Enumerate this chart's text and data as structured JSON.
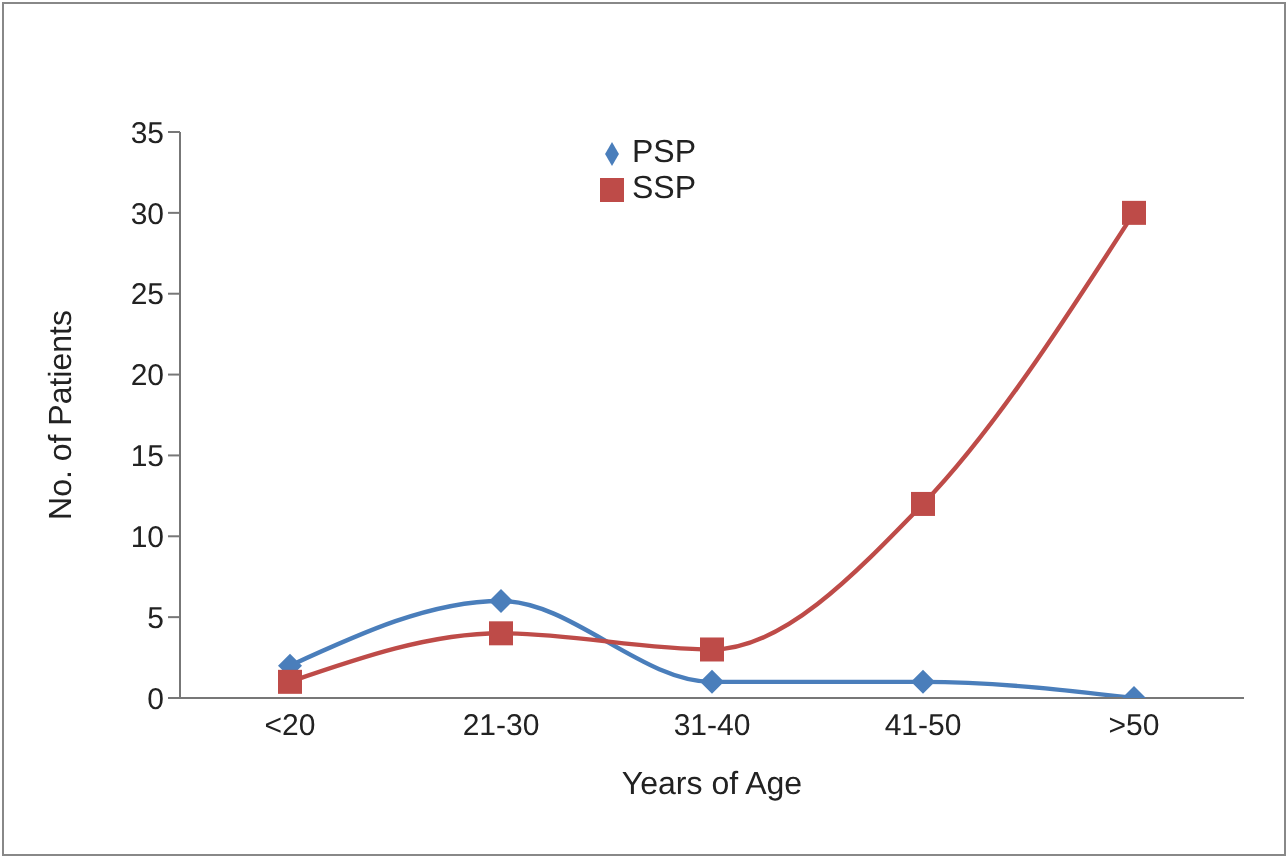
{
  "chart_data": {
    "type": "line",
    "xlabel": "Years of Age",
    "ylabel": "No. of Patients",
    "categories": [
      "<20",
      "21-30",
      "31-40",
      "41-50",
      ">50"
    ],
    "series": [
      {
        "name": "PSP",
        "color": "#4a7ebb",
        "values": [
          2,
          6,
          1,
          1,
          0
        ],
        "marker": "diamond"
      },
      {
        "name": "SSP",
        "color": "#be4b48",
        "values": [
          1,
          4,
          3,
          12,
          30
        ],
        "marker": "square"
      }
    ],
    "ylim": [
      0,
      35
    ],
    "yticks": [
      0,
      5,
      10,
      15,
      20,
      25,
      30,
      35
    ],
    "grid": false,
    "legend": "top",
    "line_style": "solid"
  }
}
